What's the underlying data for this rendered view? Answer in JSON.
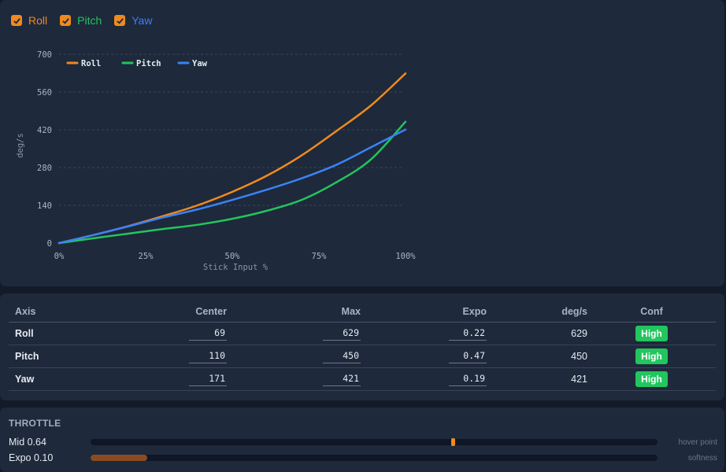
{
  "toggles": [
    {
      "label": "Roll",
      "color": "#f08a1e",
      "checked": true
    },
    {
      "label": "Pitch",
      "color": "#22c55e",
      "checked": true
    },
    {
      "label": "Yaw",
      "color": "#3b82f6",
      "checked": true
    }
  ],
  "chart_data": {
    "type": "line",
    "xlabel": "Stick Input %",
    "ylabel": "deg/s",
    "xlim": [
      0,
      100
    ],
    "ylim": [
      0,
      700
    ],
    "xticks": [
      "0%",
      "25%",
      "50%",
      "75%",
      "100%"
    ],
    "yticks": [
      "0",
      "140",
      "280",
      "420",
      "560",
      "700"
    ],
    "legend_position": "top-left",
    "series": [
      {
        "name": "Roll",
        "color": "#f08a1e",
        "x": [
          0,
          10,
          20,
          30,
          40,
          50,
          60,
          70,
          80,
          90,
          100
        ],
        "y": [
          0,
          30,
          63,
          100,
          140,
          190,
          250,
          325,
          415,
          510,
          629
        ]
      },
      {
        "name": "Pitch",
        "color": "#22c55e",
        "x": [
          0,
          10,
          20,
          30,
          40,
          50,
          60,
          70,
          80,
          90,
          100
        ],
        "y": [
          0,
          18,
          35,
          52,
          68,
          90,
          120,
          160,
          225,
          310,
          450
        ]
      },
      {
        "name": "Yaw",
        "color": "#3b82f6",
        "x": [
          0,
          10,
          20,
          30,
          40,
          50,
          60,
          70,
          80,
          90,
          100
        ],
        "y": [
          0,
          30,
          62,
          95,
          125,
          160,
          198,
          240,
          290,
          355,
          421
        ]
      }
    ]
  },
  "table": {
    "headers": [
      "Axis",
      "Center",
      "Max",
      "Expo",
      "deg/s",
      "Conf"
    ],
    "rows": [
      {
        "axis": "Roll",
        "center": "69",
        "max": "629",
        "expo": "0.22",
        "degs": "629",
        "conf": "High"
      },
      {
        "axis": "Pitch",
        "center": "110",
        "max": "450",
        "expo": "0.47",
        "degs": "450",
        "conf": "High"
      },
      {
        "axis": "Yaw",
        "center": "171",
        "max": "421",
        "expo": "0.19",
        "degs": "421",
        "conf": "High"
      }
    ]
  },
  "throttle": {
    "title": "THROTTLE",
    "mid": {
      "label": "Mid 0.64",
      "value": 0.64,
      "hint": "hover point"
    },
    "expo": {
      "label": "Expo 0.10",
      "value": 0.1,
      "hint": "softness"
    }
  }
}
